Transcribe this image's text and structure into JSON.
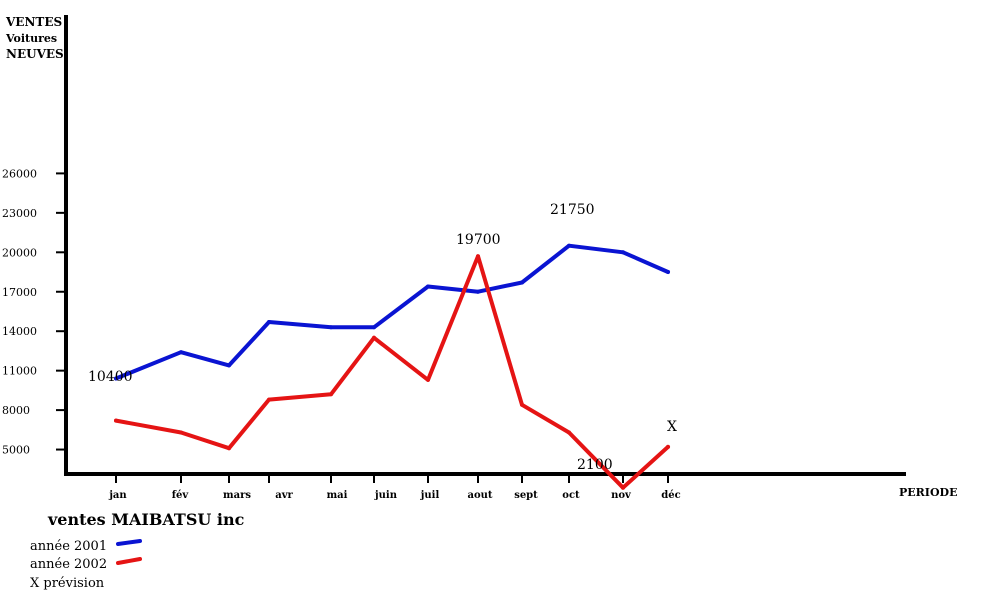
{
  "chart_data": {
    "type": "line",
    "title": "ventes MAIBATSU inc",
    "ylabel": [
      "VENTES",
      "Voitures",
      "NEUVES"
    ],
    "xlabel": "PERIODE",
    "categories": [
      "jan",
      "fév",
      "mars",
      "avr",
      "mai",
      "juin",
      "juil",
      "aout",
      "sept",
      "oct",
      "nov",
      "déc"
    ],
    "y_ticks": [
      "26000",
      "23000",
      "20000",
      "17000",
      "14000",
      "11000",
      "8000",
      "5000"
    ],
    "ylim": [
      2000,
      27000
    ],
    "series": [
      {
        "name": "année 2001",
        "color": "#0a14d2",
        "values": [
          10400,
          12400,
          11400,
          14700,
          14300,
          14300,
          17400,
          17000,
          17700,
          20500,
          20000,
          18500
        ]
      },
      {
        "name": "année 2002",
        "color": "#e51414",
        "values": [
          7200,
          6300,
          5100,
          8800,
          9200,
          13500,
          10300,
          19700,
          8400,
          6300,
          2100,
          5200
        ]
      }
    ],
    "annotations": [
      "10400",
      "19700",
      "21750",
      "2100",
      "X"
    ],
    "legend_note": "X prévision",
    "grid": false,
    "legend_placement": "bottom-left"
  }
}
